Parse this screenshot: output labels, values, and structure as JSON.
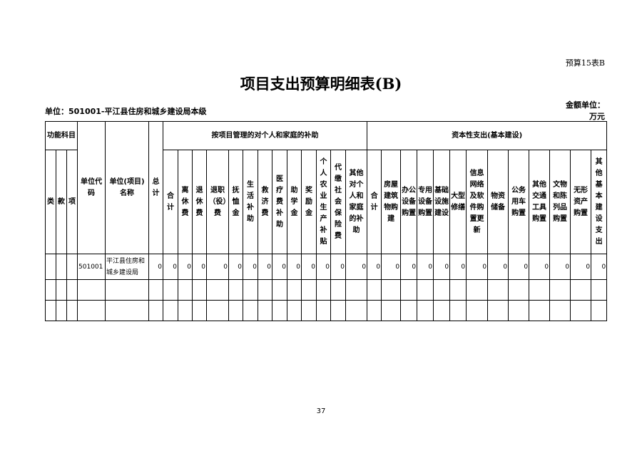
{
  "tag": "预算15表B",
  "title": "项目支出预算明细表(B)",
  "unit": "单位：501001-平江县住房和城乡建设局本级",
  "amount_unit": "金额单位：",
  "amount_unit2": "万元",
  "header": {
    "func": "功能科目",
    "lei": "类",
    "kuan": "款",
    "xiang": "项",
    "code": "单位代码",
    "name": "单位(项目)名称",
    "total": "总计",
    "groupA": "按项目管理的对个人和家庭的补助",
    "groupB": "资本性支出(基本建设)",
    "colsA": [
      "合计",
      "离休费",
      "退休费",
      "退职（役）费",
      "抚恤金",
      "生活补助",
      "救济费",
      "医疗费补助",
      "助学金",
      "奖励金",
      "个人农业生产补贴",
      "代缴社会保险费",
      "其他对个人和家庭的补助"
    ],
    "colsB": [
      "合计",
      "房屋建筑物购建",
      "办公设备购置",
      "专用设备购置",
      "基础设施建设",
      "大型修缮",
      "信息网络及软件购置更新",
      "物资储备",
      "公务用车购置",
      "其他交通工具购置",
      "文物和陈列品购置",
      "无形资产购置",
      "其他基本建设支出"
    ]
  },
  "rows": [
    {
      "code": "501001",
      "name": "平江县住房和城乡建设局",
      "total": "0",
      "valuesA": [
        "0",
        "0",
        "0",
        "0",
        "0",
        "0",
        "0",
        "0",
        "0",
        "0",
        "0",
        "0",
        "0"
      ],
      "valuesB": [
        "0",
        "0",
        "0",
        "0",
        "0",
        "0",
        "0",
        "0",
        "0",
        "0",
        "0",
        "0",
        "0"
      ]
    }
  ],
  "page_number": "37"
}
